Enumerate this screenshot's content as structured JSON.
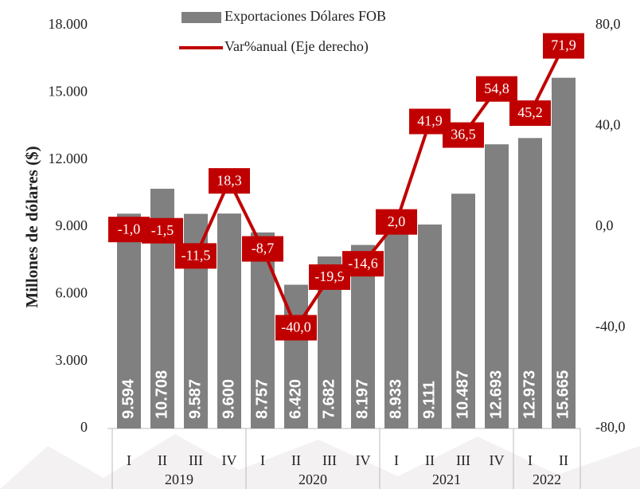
{
  "chart_data": {
    "type": "bar-line",
    "y_label": "Millones de dólares ($)",
    "groups": [
      {
        "label": "2019",
        "categories": [
          "I",
          "II",
          "III",
          "IV"
        ]
      },
      {
        "label": "2020",
        "categories": [
          "I",
          "II",
          "III",
          "IV"
        ]
      },
      {
        "label": "2021",
        "categories": [
          "I",
          "II",
          "III",
          "IV"
        ]
      },
      {
        "label": "2022",
        "categories": [
          "I",
          "II"
        ]
      }
    ],
    "series": [
      {
        "name": "Exportaciones Dólares FOB",
        "type": "bar",
        "color": "#808080",
        "values": [
          9594,
          10708,
          9587,
          9600,
          8757,
          6420,
          7682,
          8197,
          8933,
          9111,
          10487,
          12693,
          12973,
          15665
        ],
        "value_labels": [
          "9.594",
          "10.708",
          "9.587",
          "9.600",
          "8.757",
          "6.420",
          "7.682",
          "8.197",
          "8.933",
          "9.111",
          "10.487",
          "12.693",
          "12.973",
          "15.665"
        ]
      },
      {
        "name": "Var%anual (Eje derecho)",
        "type": "line",
        "axis": "y2",
        "color": "#c00000",
        "values": [
          -1.0,
          -1.5,
          -11.5,
          18.3,
          -8.7,
          -40.0,
          -19.9,
          -14.6,
          2.0,
          41.9,
          36.5,
          54.8,
          45.2,
          71.9
        ],
        "value_labels": [
          "-1,0",
          "-1,5",
          "-11,5",
          "18,3",
          "-8,7",
          "-40,0",
          "-19,9",
          "-14,6",
          "2,0",
          "41,9",
          "36,5",
          "54,8",
          "45,2",
          "71,9"
        ]
      }
    ],
    "ylim": [
      0,
      18000
    ],
    "yticks": [
      0,
      {
        "value": 3000,
        "label": "3.000"
      },
      {
        "value": 6000,
        "label": "6.000"
      },
      {
        "value": 9000,
        "label": "9.000"
      },
      {
        "value": 12000,
        "label": "12.000"
      },
      {
        "value": 15000,
        "label": "15.000"
      },
      {
        "value": 18000,
        "label": "18.000"
      }
    ],
    "y2lim": [
      -80,
      80
    ],
    "y2ticks": [
      {
        "value": -80,
        "label": "-80,0"
      },
      {
        "value": -40,
        "label": "-40,0"
      },
      {
        "value": 0,
        "label": "0,0"
      },
      {
        "value": 40,
        "label": "40,0"
      },
      {
        "value": 80,
        "label": "80,0"
      }
    ]
  }
}
